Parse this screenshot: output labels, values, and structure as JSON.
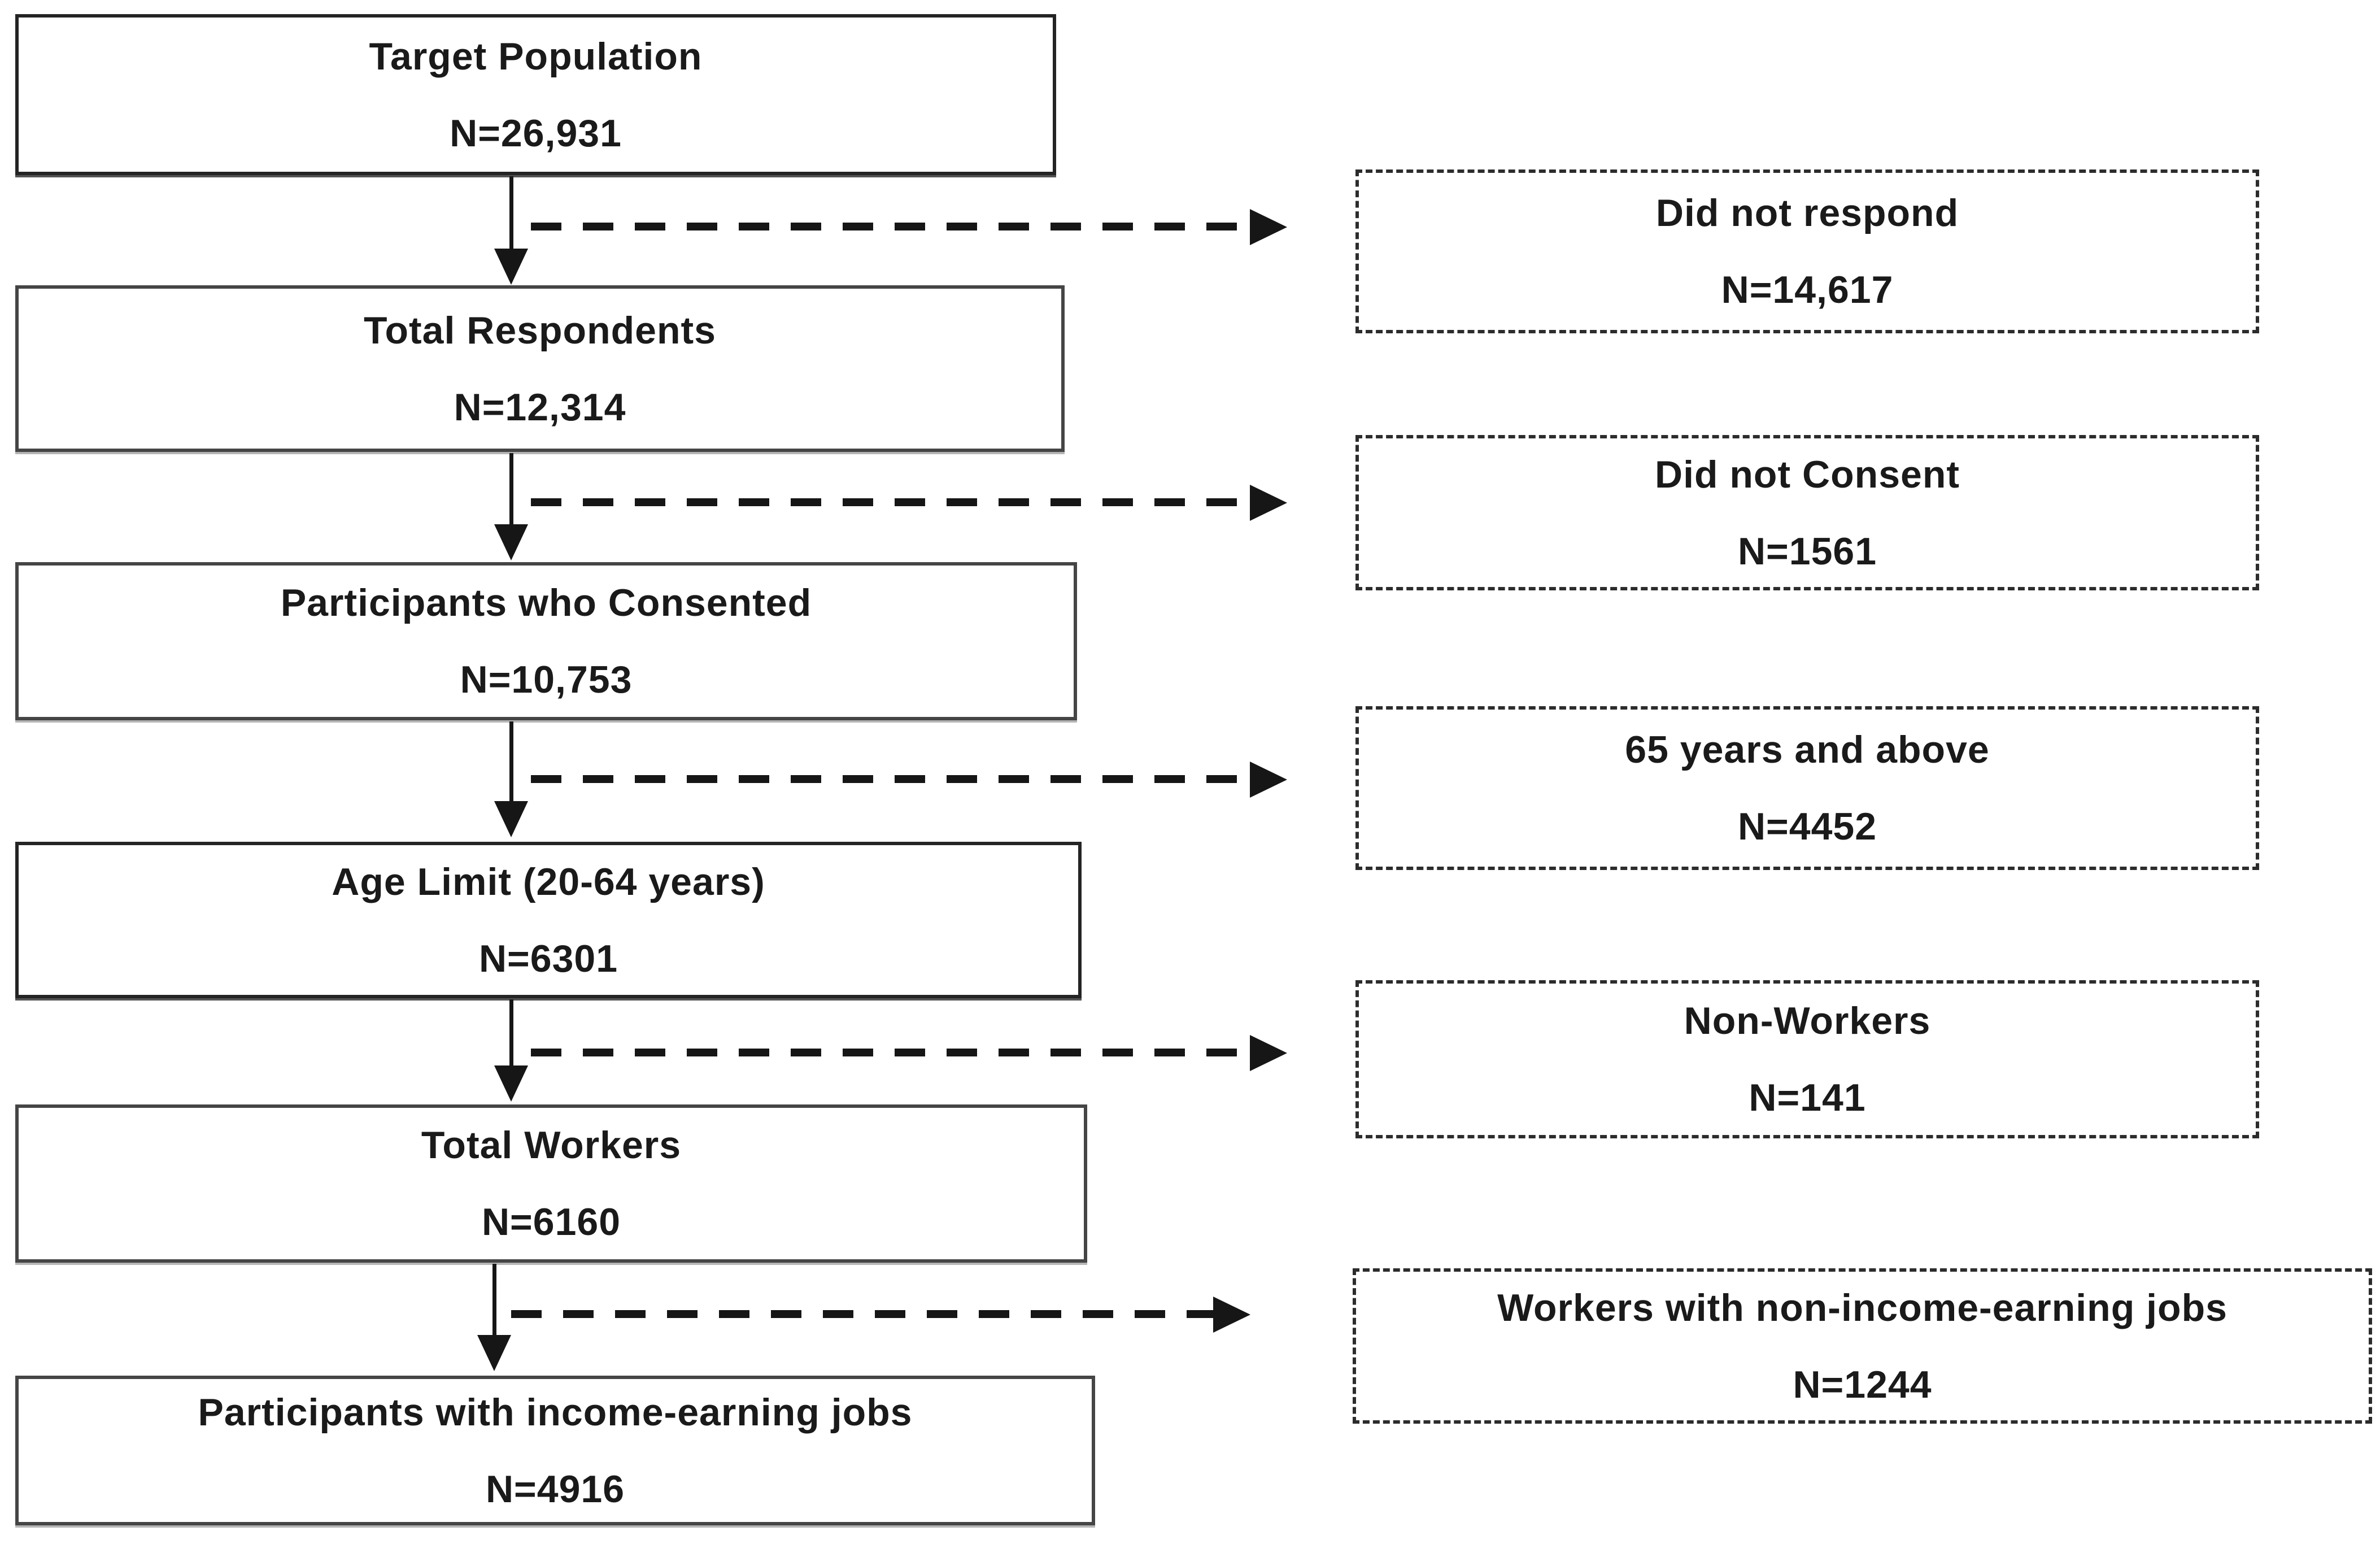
{
  "diagram": {
    "type": "participant-flow-chart",
    "background_color": "#ffffff",
    "text_color": "#1a1a1a",
    "solid_border_color": "#454545",
    "dashed_border_color": "#2c2c2c",
    "arrow_color": "#161616",
    "flow_boxes": [
      {
        "label": "Target Population",
        "n": "N=26,931"
      },
      {
        "label": "Total Respondents",
        "n": "N=12,314"
      },
      {
        "label": "Participants who Consented",
        "n": "N=10,753"
      },
      {
        "label": "Age Limit (20-64 years)",
        "n": "N=6301"
      },
      {
        "label": "Total Workers",
        "n": "N=6160"
      },
      {
        "label": "Participants with income-earning jobs",
        "n": "N=4916"
      }
    ],
    "exclusion_boxes": [
      {
        "label": "Did not respond",
        "n": "N=14,617"
      },
      {
        "label": "Did not Consent",
        "n": "N=1561"
      },
      {
        "label": "65 years and above",
        "n": "N=4452"
      },
      {
        "label": "Non-Workers",
        "n": "N=141"
      },
      {
        "label": "Workers with non-income-earning jobs",
        "n": "N=1244"
      }
    ]
  }
}
